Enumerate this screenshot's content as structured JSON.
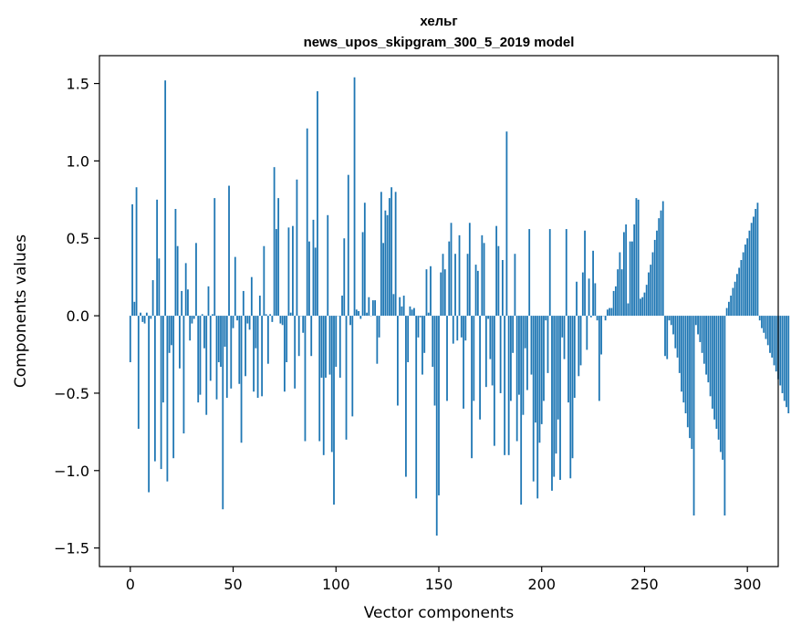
{
  "chart_data": {
    "type": "bar",
    "title": "хельг",
    "subtitle": "news_upos_skipgram_300_5_2019 model",
    "xlabel": "Vector components",
    "ylabel": "Components values",
    "xlim": [
      -15,
      315
    ],
    "ylim": [
      -1.62,
      1.68
    ],
    "xticks": [
      0,
      50,
      100,
      150,
      200,
      250,
      300
    ],
    "yticks": [
      -1.5,
      -1.0,
      -0.5,
      0.0,
      0.5,
      1.0,
      1.5
    ],
    "ytick_labels": [
      "−1.5",
      "−1.0",
      "−0.5",
      "0.0",
      "0.5",
      "1.0",
      "1.5"
    ],
    "grid": false,
    "legend": "none",
    "bar_color": "#1f77b4",
    "values": [
      -0.3,
      0.72,
      0.09,
      0.83,
      -0.73,
      0.02,
      -0.04,
      -0.05,
      0.02,
      -1.14,
      -0.02,
      0.23,
      -0.94,
      0.75,
      0.37,
      -0.99,
      -0.56,
      1.52,
      -1.07,
      -0.24,
      -0.19,
      -0.92,
      0.69,
      0.45,
      -0.34,
      0.16,
      -0.76,
      0.34,
      0.17,
      -0.16,
      -0.05,
      -0.02,
      0.47,
      -0.56,
      -0.51,
      0.01,
      -0.21,
      -0.64,
      0.19,
      -0.42,
      0.01,
      0.76,
      -0.54,
      -0.3,
      -0.33,
      -1.25,
      -0.2,
      -0.53,
      0.84,
      -0.47,
      -0.08,
      0.38,
      -0.03,
      -0.44,
      -0.82,
      0.16,
      -0.39,
      -0.05,
      -0.09,
      0.25,
      -0.49,
      -0.21,
      -0.53,
      0.13,
      -0.52,
      0.45,
      0.01,
      -0.31,
      0.01,
      -0.04,
      0.96,
      0.56,
      0.76,
      -0.05,
      -0.06,
      -0.49,
      -0.3,
      0.57,
      0.02,
      0.58,
      -0.47,
      0.88,
      -0.26,
      0.0,
      -0.11,
      -0.81,
      1.21,
      0.48,
      -0.26,
      0.62,
      0.44,
      1.45,
      -0.81,
      -0.4,
      -0.9,
      -0.4,
      0.65,
      -0.38,
      -0.88,
      -1.22,
      -0.33,
      0.0,
      -0.4,
      0.13,
      0.5,
      -0.8,
      0.91,
      -0.06,
      -0.65,
      1.54,
      0.04,
      0.03,
      -0.02,
      0.54,
      0.73,
      0.02,
      0.12,
      0.0,
      0.1,
      0.1,
      -0.31,
      -0.14,
      0.8,
      0.47,
      0.68,
      0.65,
      0.76,
      0.83,
      0.14,
      0.8,
      -0.58,
      0.12,
      0.06,
      0.13,
      -1.04,
      -0.3,
      0.06,
      0.04,
      0.05,
      -1.18,
      -0.14,
      -0.01,
      -0.38,
      -0.24,
      0.3,
      0.02,
      0.32,
      -0.33,
      -0.58,
      -1.42,
      -1.16,
      0.28,
      0.4,
      0.3,
      -0.55,
      0.48,
      0.6,
      -0.18,
      0.4,
      -0.16,
      0.52,
      -0.14,
      -0.6,
      -0.16,
      0.4,
      0.6,
      -0.92,
      -0.55,
      0.33,
      0.29,
      -0.67,
      0.52,
      0.47,
      -0.46,
      -0.02,
      -0.28,
      -0.45,
      -0.84,
      0.58,
      0.45,
      -0.5,
      0.36,
      -0.9,
      1.19,
      -0.9,
      -0.55,
      -0.24,
      0.4,
      -0.81,
      -0.51,
      -1.22,
      -0.64,
      -0.21,
      -0.48,
      0.56,
      -0.38,
      -1.07,
      -0.69,
      -1.18,
      -0.82,
      -0.7,
      -0.55,
      -0.03,
      -0.37,
      0.56,
      -1.13,
      -1.04,
      -0.89,
      -0.67,
      -1.06,
      -0.14,
      -0.28,
      0.56,
      -0.56,
      -1.05,
      -0.92,
      -0.53,
      0.22,
      -0.39,
      -0.32,
      0.28,
      0.55,
      -0.22,
      0.24,
      -0.01,
      0.42,
      0.21,
      -0.03,
      -0.55,
      -0.25,
      0.0,
      -0.03,
      0.04,
      0.05,
      0.05,
      0.16,
      0.19,
      0.3,
      0.41,
      0.3,
      0.54,
      0.59,
      0.08,
      0.48,
      0.48,
      0.59,
      0.76,
      0.75,
      0.11,
      0.12,
      0.15,
      0.2,
      0.28,
      0.33,
      0.41,
      0.49,
      0.55,
      0.63,
      0.68,
      0.74,
      -0.26,
      -0.28,
      -0.03,
      -0.06,
      -0.12,
      -0.21,
      -0.27,
      -0.37,
      -0.49,
      -0.56,
      -0.63,
      -0.72,
      -0.79,
      -0.86,
      -1.29,
      -0.06,
      -0.12,
      -0.17,
      -0.24,
      -0.31,
      -0.38,
      -0.43,
      -0.52,
      -0.6,
      -0.67,
      -0.73,
      -0.8,
      -0.88,
      -0.93,
      -1.29,
      0.05,
      0.09,
      0.13,
      0.18,
      0.22,
      0.27,
      0.31,
      0.36,
      0.41,
      0.46,
      0.5,
      0.55,
      0.6,
      0.64,
      0.69,
      0.73,
      -0.03,
      -0.08,
      -0.11,
      -0.15,
      -0.19,
      -0.24,
      -0.27,
      -0.32,
      -0.36,
      -0.41,
      -0.45,
      -0.5,
      -0.55,
      -0.59,
      -0.63
    ]
  }
}
